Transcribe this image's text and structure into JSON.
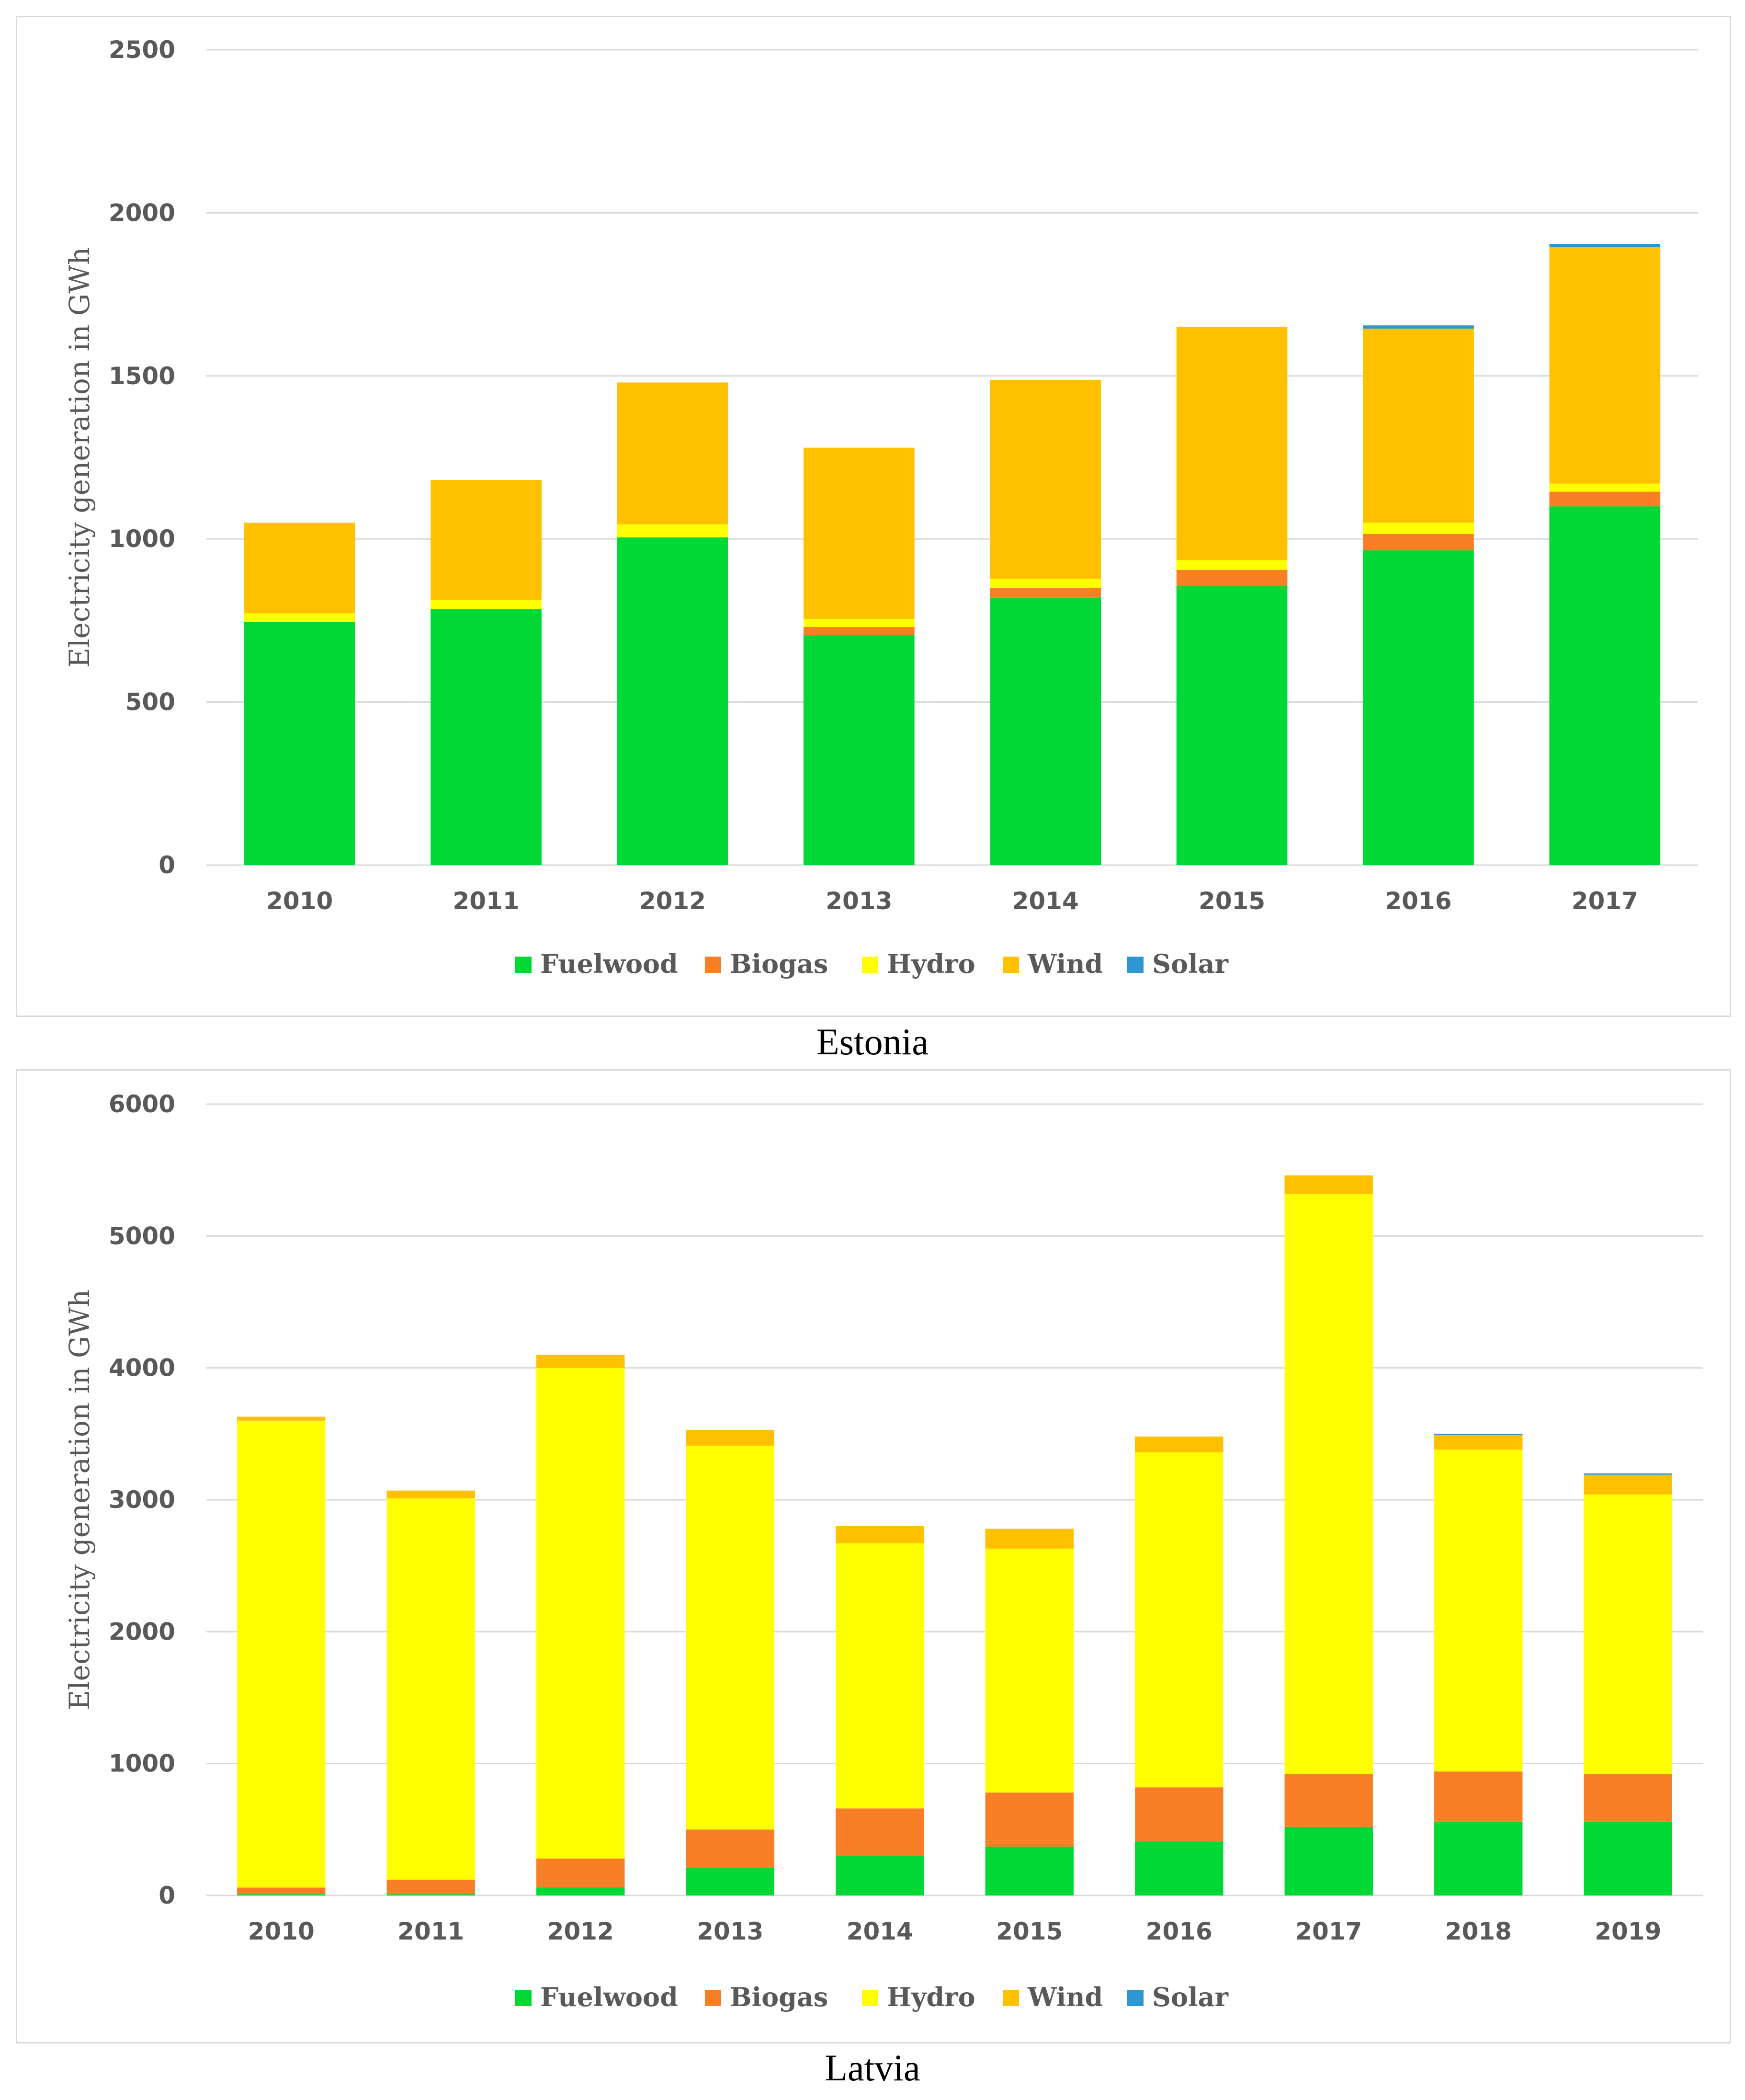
{
  "colors": {
    "Fuelwood": "#00d935",
    "Biogas": "#f97f27",
    "Hydro": "#ffff00",
    "Wind": "#ffc000",
    "Solar": "#2e96d2"
  },
  "chart_data": [
    {
      "type": "bar",
      "stacked": true,
      "title": "Estonia",
      "ylabel": "Electricity generation in GWh",
      "xlabel": "",
      "ylim": [
        0,
        2500
      ],
      "yticks": [
        0,
        500,
        1000,
        1500,
        2000,
        2500
      ],
      "grid": true,
      "legend_position": "bottom",
      "categories": [
        "2010",
        "2011",
        "2012",
        "2013",
        "2014",
        "2015",
        "2016",
        "2017"
      ],
      "series": [
        {
          "name": "Fuelwood",
          "values": [
            745,
            785,
            1005,
            705,
            820,
            855,
            965,
            1100
          ]
        },
        {
          "name": "Biogas",
          "values": [
            0,
            0,
            0,
            25,
            30,
            50,
            50,
            45
          ]
        },
        {
          "name": "Hydro",
          "values": [
            27,
            28,
            40,
            25,
            28,
            30,
            35,
            25
          ]
        },
        {
          "name": "Wind",
          "values": [
            278,
            368,
            435,
            525,
            610,
            715,
            595,
            725
          ]
        },
        {
          "name": "Solar",
          "values": [
            0,
            0,
            0,
            0,
            0,
            0,
            10,
            10
          ]
        }
      ]
    },
    {
      "type": "bar",
      "stacked": true,
      "title": "Latvia",
      "ylabel": "Electricity generation in GWh",
      "xlabel": "",
      "ylim": [
        0,
        6000
      ],
      "yticks": [
        0,
        1000,
        2000,
        3000,
        4000,
        5000,
        6000
      ],
      "grid": true,
      "legend_position": "bottom",
      "categories": [
        "2010",
        "2011",
        "2012",
        "2013",
        "2014",
        "2015",
        "2016",
        "2017",
        "2018",
        "2019"
      ],
      "series": [
        {
          "name": "Fuelwood",
          "values": [
            10,
            10,
            60,
            210,
            300,
            370,
            410,
            520,
            560,
            560
          ]
        },
        {
          "name": "Biogas",
          "values": [
            50,
            110,
            220,
            290,
            360,
            410,
            410,
            400,
            380,
            360
          ]
        },
        {
          "name": "Hydro",
          "values": [
            3540,
            2890,
            3720,
            2910,
            2010,
            1850,
            2540,
            4400,
            2440,
            2120
          ]
        },
        {
          "name": "Wind",
          "values": [
            30,
            60,
            100,
            120,
            130,
            150,
            120,
            140,
            110,
            150
          ]
        },
        {
          "name": "Solar",
          "values": [
            0,
            0,
            0,
            0,
            0,
            0,
            0,
            0,
            10,
            10
          ]
        }
      ]
    }
  ]
}
